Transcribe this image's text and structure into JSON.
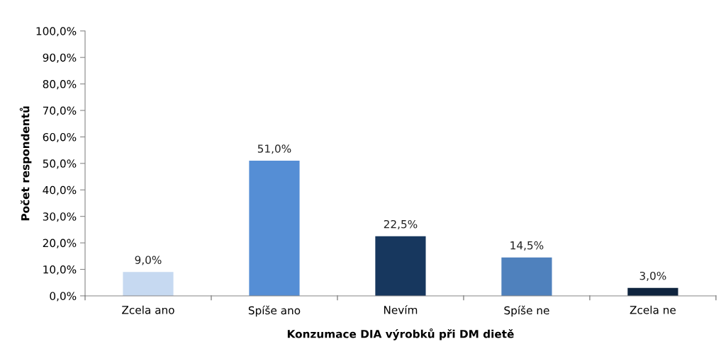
{
  "chart_data": {
    "type": "bar",
    "xlabel": "Konzumace DIA výrobků při DM dietě",
    "ylabel": "Počet respondentů",
    "categories": [
      "Zcela ano",
      "Spíše ano",
      "Nevím",
      "Spíše ne",
      "Zcela ne"
    ],
    "values": [
      9.0,
      51.0,
      22.5,
      14.5,
      3.0
    ],
    "colors": [
      "#c6d9f1",
      "#558ed5",
      "#17375e",
      "#4f81bd",
      "#0f243e"
    ],
    "value_labels": [
      "9,0%",
      "51,0%",
      "22,5%",
      "14,5%",
      "3,0%"
    ],
    "ylim": [
      0,
      100
    ],
    "yticks": [
      {
        "value": 0,
        "label": "0,0%"
      },
      {
        "value": 10,
        "label": "10,0%"
      },
      {
        "value": 20,
        "label": "20,0%"
      },
      {
        "value": 30,
        "label": "30,0%"
      },
      {
        "value": 40,
        "label": "40,0%"
      },
      {
        "value": 50,
        "label": "50,0%"
      },
      {
        "value": 60,
        "label": "60,0%"
      },
      {
        "value": 70,
        "label": "70,0%"
      },
      {
        "value": 80,
        "label": "80,0%"
      },
      {
        "value": 90,
        "label": "90,0%"
      },
      {
        "value": 100,
        "label": "100,0%"
      }
    ],
    "grid": false,
    "legend": false
  }
}
